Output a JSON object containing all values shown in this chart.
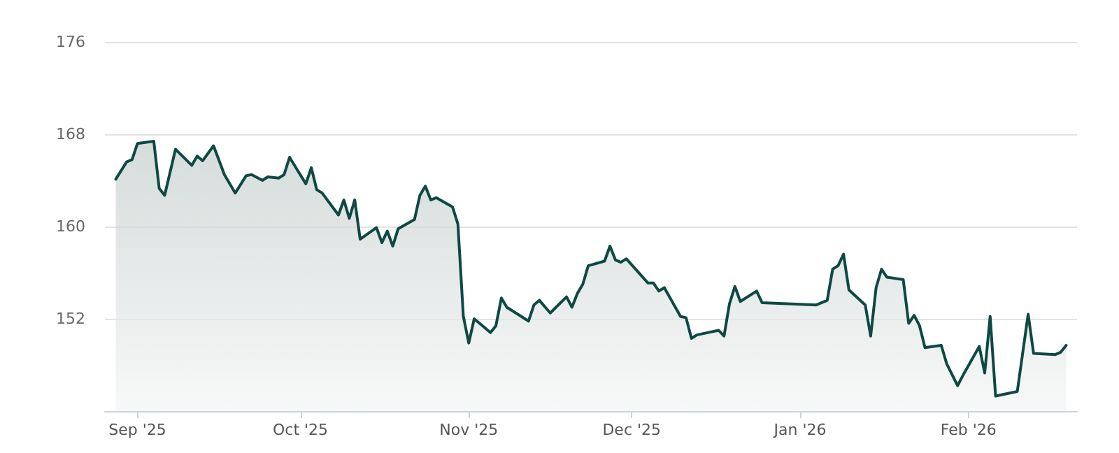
{
  "chart_data": {
    "type": "area",
    "x": [
      "2025-08-28",
      "2025-08-30",
      "2025-08-31",
      "2025-09-01",
      "2025-09-04",
      "2025-09-05",
      "2025-09-06",
      "2025-09-08",
      "2025-09-11",
      "2025-09-12",
      "2025-09-13",
      "2025-09-15",
      "2025-09-17",
      "2025-09-19",
      "2025-09-21",
      "2025-09-22",
      "2025-09-24",
      "2025-09-25",
      "2025-09-27",
      "2025-09-28",
      "2025-09-29",
      "2025-10-02",
      "2025-10-03",
      "2025-10-04",
      "2025-10-05",
      "2025-10-08",
      "2025-10-09",
      "2025-10-10",
      "2025-10-11",
      "2025-10-12",
      "2025-10-15",
      "2025-10-16",
      "2025-10-17",
      "2025-10-18",
      "2025-10-19",
      "2025-10-22",
      "2025-10-23",
      "2025-10-24",
      "2025-10-25",
      "2025-10-26",
      "2025-10-29",
      "2025-10-30",
      "2025-10-31",
      "2025-11-01",
      "2025-11-02",
      "2025-11-05",
      "2025-11-06",
      "2025-11-07",
      "2025-11-08",
      "2025-11-12",
      "2025-11-13",
      "2025-11-14",
      "2025-11-16",
      "2025-11-19",
      "2025-11-20",
      "2025-11-21",
      "2025-11-22",
      "2025-11-23",
      "2025-11-26",
      "2025-11-27",
      "2025-11-28",
      "2025-11-29",
      "2025-11-30",
      "2025-12-04",
      "2025-12-05",
      "2025-12-06",
      "2025-12-07",
      "2025-12-10",
      "2025-12-11",
      "2025-12-12",
      "2025-12-13",
      "2025-12-17",
      "2025-12-18",
      "2025-12-19",
      "2025-12-20",
      "2025-12-21",
      "2025-12-24",
      "2025-12-25",
      "2026-01-04",
      "2026-01-06",
      "2026-01-07",
      "2026-01-08",
      "2026-01-09",
      "2026-01-10",
      "2026-01-13",
      "2026-01-14",
      "2026-01-15",
      "2026-01-16",
      "2026-01-17",
      "2026-01-20",
      "2026-01-21",
      "2026-01-22",
      "2026-01-23",
      "2026-01-24",
      "2026-01-27",
      "2026-01-28",
      "2026-01-30",
      "2026-01-31",
      "2026-02-03",
      "2026-02-04",
      "2026-02-05",
      "2026-02-06",
      "2026-02-10",
      "2026-02-12",
      "2026-02-13",
      "2026-02-17",
      "2026-02-18",
      "2026-02-19"
    ],
    "series": [
      {
        "color": "#0e4943",
        "values": [
          164.1,
          165.6,
          165.8,
          167.2,
          167.4,
          163.3,
          162.7,
          166.7,
          165.3,
          166.1,
          165.7,
          167.0,
          164.5,
          162.9,
          164.4,
          164.5,
          164.0,
          164.3,
          164.2,
          164.5,
          166.0,
          163.7,
          165.1,
          163.2,
          162.9,
          161.0,
          162.3,
          160.7,
          162.3,
          158.9,
          159.9,
          158.6,
          159.6,
          158.3,
          159.8,
          160.6,
          162.7,
          163.5,
          162.3,
          162.5,
          161.7,
          160.2,
          152.2,
          149.9,
          152.0,
          150.8,
          151.4,
          153.8,
          153.0,
          151.8,
          153.2,
          153.6,
          152.5,
          153.9,
          153.0,
          154.2,
          155.0,
          156.6,
          157.0,
          158.3,
          157.1,
          156.9,
          157.2,
          155.1,
          155.1,
          154.4,
          154.7,
          152.2,
          152.1,
          150.3,
          150.6,
          151.0,
          150.5,
          153.3,
          154.8,
          153.5,
          154.4,
          153.4,
          153.2,
          153.6,
          156.3,
          156.6,
          157.6,
          154.5,
          153.2,
          150.5,
          154.7,
          156.3,
          155.6,
          155.4,
          151.6,
          152.3,
          151.4,
          149.5,
          149.7,
          148.1,
          146.2,
          147.1,
          149.6,
          147.3,
          152.2,
          145.3,
          145.7,
          152.4,
          149.0,
          148.9,
          149.1,
          149.7
        ]
      }
    ],
    "xlim": [
      "2025-08-26",
      "2026-02-21"
    ],
    "xticks": [
      {
        "value": "2025-09-01",
        "label": "Sep '25"
      },
      {
        "value": "2025-10-01",
        "label": "Oct '25"
      },
      {
        "value": "2025-11-01",
        "label": "Nov '25"
      },
      {
        "value": "2025-12-01",
        "label": "Dec '25"
      },
      {
        "value": "2026-01-01",
        "label": "Jan '26"
      },
      {
        "value": "2026-02-01",
        "label": "Feb '26"
      }
    ],
    "ylim": [
      144,
      176
    ],
    "yticks": [
      152,
      160,
      168,
      176
    ],
    "grid": "y",
    "marker": "none",
    "line_style": "solid"
  }
}
